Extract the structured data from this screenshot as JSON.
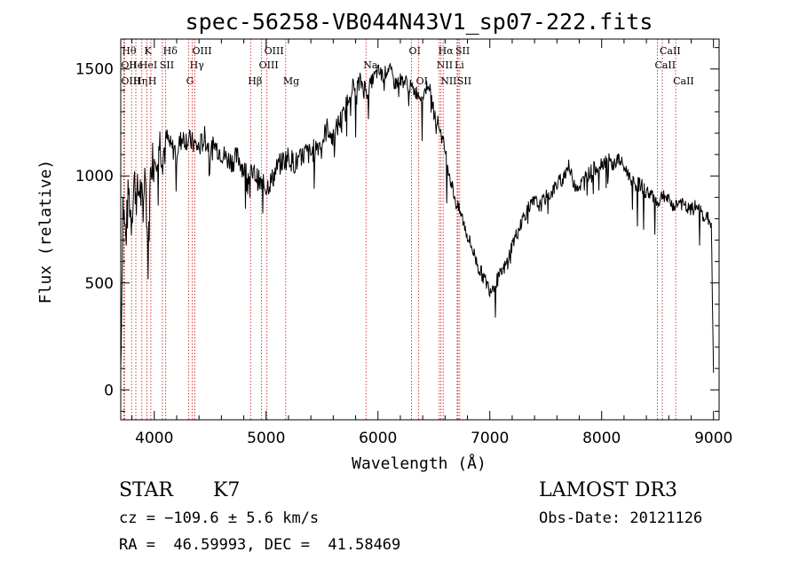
{
  "chart_data": {
    "type": "line",
    "title": "spec-56258-VB044N43V1_sp07-222.fits",
    "xlabel": "Wavelength (Å)",
    "ylabel": "Flux (relative)",
    "xlim": [
      3700,
      9050
    ],
    "ylim": [
      -140,
      1640
    ],
    "xticks": [
      {
        "value": 4000,
        "label": "4000"
      },
      {
        "value": 5000,
        "label": "5000"
      },
      {
        "value": 6000,
        "label": "6000"
      },
      {
        "value": 7000,
        "label": "7000"
      },
      {
        "value": 8000,
        "label": "8000"
      },
      {
        "value": 9000,
        "label": "9000"
      }
    ],
    "yticks": [
      {
        "value": 0,
        "label": "0"
      },
      {
        "value": 500,
        "label": "500"
      },
      {
        "value": 1000,
        "label": "1000"
      },
      {
        "value": 1500,
        "label": "1500"
      }
    ],
    "series": [
      {
        "name": "flux",
        "x": [
          3700,
          3720,
          3745,
          3770,
          3795,
          3820,
          3845,
          3870,
          3895,
          3920,
          3945,
          3970,
          3995,
          4020,
          4050,
          4080,
          4110,
          4150,
          4200,
          4250,
          4300,
          4350,
          4400,
          4450,
          4500,
          4550,
          4600,
          4650,
          4700,
          4750,
          4800,
          4850,
          4900,
          4950,
          5000,
          5050,
          5100,
          5150,
          5200,
          5250,
          5300,
          5350,
          5400,
          5450,
          5500,
          5550,
          5600,
          5650,
          5700,
          5750,
          5800,
          5850,
          5900,
          5950,
          6000,
          6050,
          6100,
          6150,
          6200,
          6250,
          6300,
          6350,
          6400,
          6450,
          6500,
          6550,
          6600,
          6650,
          6700,
          6750,
          6800,
          6850,
          6900,
          6950,
          7000,
          7050,
          7100,
          7150,
          7200,
          7250,
          7300,
          7350,
          7400,
          7450,
          7500,
          7550,
          7600,
          7650,
          7700,
          7750,
          7800,
          7850,
          7900,
          7950,
          8000,
          8050,
          8100,
          8150,
          8200,
          8250,
          8300,
          8350,
          8400,
          8450,
          8500,
          8550,
          8600,
          8650,
          8700,
          8750,
          8800,
          8850,
          8900,
          8950,
          8980,
          9000
        ],
        "y": [
          100,
          880,
          700,
          930,
          800,
          980,
          900,
          950,
          850,
          1020,
          600,
          1100,
          1070,
          1130,
          1160,
          1100,
          1180,
          1130,
          1120,
          1180,
          1170,
          1150,
          1130,
          1180,
          1120,
          1140,
          1110,
          1080,
          1070,
          1090,
          1030,
          1000,
          1010,
          960,
          950,
          980,
          1040,
          1070,
          1090,
          1060,
          1070,
          1110,
          1100,
          1140,
          1160,
          1230,
          1170,
          1250,
          1280,
          1420,
          1400,
          1440,
          1390,
          1450,
          1490,
          1470,
          1510,
          1430,
          1450,
          1440,
          1410,
          1390,
          1370,
          1440,
          1300,
          1230,
          1120,
          980,
          870,
          810,
          720,
          650,
          570,
          520,
          470,
          500,
          540,
          590,
          680,
          740,
          810,
          850,
          880,
          860,
          900,
          920,
          960,
          990,
          1050,
          970,
          950,
          990,
          1020,
          1040,
          1060,
          1080,
          1050,
          1080,
          1040,
          1000,
          960,
          960,
          920,
          920,
          870,
          920,
          880,
          860,
          880,
          850,
          840,
          860,
          820,
          800,
          780,
          80
        ]
      }
    ],
    "lines": [
      {
        "wavelength": 3734,
        "label": "Hθ",
        "row": 0
      },
      {
        "wavelength": 3727,
        "label": "OII",
        "row": 1
      },
      {
        "wavelength": 3727,
        "label": "OIII",
        "row": 2
      },
      {
        "wavelength": 3797,
        "label": "He",
        "row": 1
      },
      {
        "wavelength": 3835,
        "label": "Hη",
        "row": 2
      },
      {
        "wavelength": 3889,
        "label": "HeI",
        "row": 1
      },
      {
        "wavelength": 3934,
        "label": "K",
        "row": 0
      },
      {
        "wavelength": 3969,
        "label": "H",
        "row": 2
      },
      {
        "wavelength": 4072,
        "label": "SII",
        "row": 1
      },
      {
        "wavelength": 4102,
        "label": "Hδ",
        "row": 0
      },
      {
        "wavelength": 4308,
        "label": "G",
        "row": 2
      },
      {
        "wavelength": 4340,
        "label": "Hγ",
        "row": 1
      },
      {
        "wavelength": 4363,
        "label": "OIII",
        "row": 0
      },
      {
        "wavelength": 4861,
        "label": "Hβ",
        "row": 2
      },
      {
        "wavelength": 4959,
        "label": "OIII",
        "row": 1
      },
      {
        "wavelength": 5007,
        "label": "OIII",
        "row": 0
      },
      {
        "wavelength": 5175,
        "label": "Mg",
        "row": 2
      },
      {
        "wavelength": 5893,
        "label": "Na",
        "row": 1
      },
      {
        "wavelength": 6300,
        "label": "OI",
        "row": 0
      },
      {
        "wavelength": 6364,
        "label": "OI",
        "row": 2
      },
      {
        "wavelength": 6548,
        "label": "NII",
        "row": 1
      },
      {
        "wavelength": 6563,
        "label": "Hα",
        "row": 0
      },
      {
        "wavelength": 6583,
        "label": "NII",
        "row": 2
      },
      {
        "wavelength": 6708,
        "label": "Li",
        "row": 1
      },
      {
        "wavelength": 6716,
        "label": "SII",
        "row": 0
      },
      {
        "wavelength": 6731,
        "label": "SII",
        "row": 2
      },
      {
        "wavelength": 8498,
        "label": "CaII",
        "row": 1
      },
      {
        "wavelength": 8542,
        "label": "CaII",
        "row": 0
      },
      {
        "wavelength": 8662,
        "label": "CaII",
        "row": 2
      }
    ]
  },
  "info": {
    "object_class": "STAR",
    "subclass": "K7",
    "survey": "LAMOST DR3",
    "redshift": "cz = −109.6 ± 5.6 km/s",
    "obs_date": "Obs-Date: 20121126",
    "coords": "RA =  46.59993, DEC =  41.58469"
  }
}
